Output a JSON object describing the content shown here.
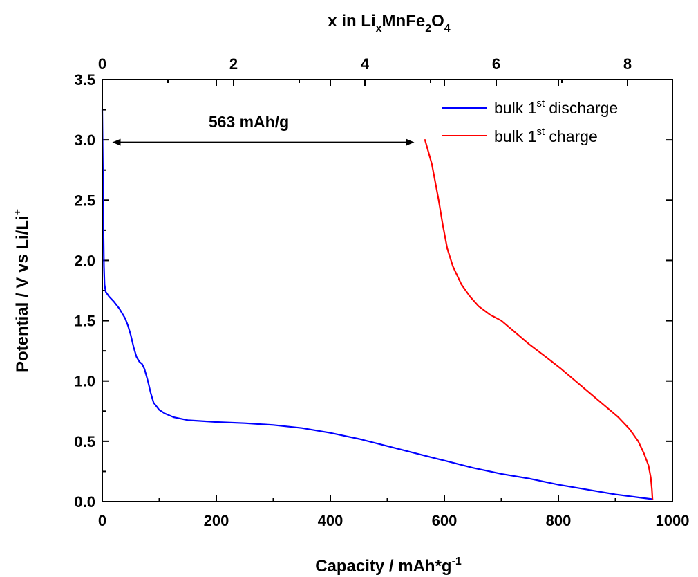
{
  "chart_data": {
    "type": "line",
    "xlabel": "Capacity / mAh*g",
    "xlabel_sup": "-1",
    "ylabel": "Potential / V vs Li/Li",
    "ylabel_sup": "+",
    "top_axis_label": {
      "parts": [
        {
          "text": "x in Li",
          "style": "normal"
        },
        {
          "text": "x",
          "style": "sub"
        },
        {
          "text": "MnFe",
          "style": "normal"
        },
        {
          "text": "2",
          "style": "sub"
        },
        {
          "text": "O",
          "style": "normal"
        },
        {
          "text": "4",
          "style": "sub"
        }
      ]
    },
    "xlim": [
      0,
      1000
    ],
    "ylim": [
      0,
      3.5
    ],
    "x_ticks": [
      0,
      200,
      400,
      600,
      800,
      1000
    ],
    "x_tick_labels": [
      "0",
      "200",
      "400",
      "600",
      "800",
      "1000"
    ],
    "y_ticks": [
      0,
      0.5,
      1.0,
      1.5,
      2.0,
      2.5,
      3.0,
      3.5
    ],
    "y_tick_labels": [
      "0.0",
      "0.5",
      "1.0",
      "1.5",
      "2.0",
      "2.5",
      "3.0",
      "3.5"
    ],
    "top_ticks_capacity": [
      0,
      230.3,
      460.6,
      690.9,
      921.2
    ],
    "top_tick_labels": [
      "0",
      "2",
      "4",
      "6",
      "8"
    ],
    "grid": false,
    "legend_position": "top-right",
    "series": [
      {
        "name_main": "bulk 1",
        "name_sup": "st",
        "name_tail": " discharge",
        "color": "#0000ff",
        "points": [
          [
            0,
            3.25
          ],
          [
            1,
            2.8
          ],
          [
            2,
            2.3
          ],
          [
            3,
            1.95
          ],
          [
            4,
            1.8
          ],
          [
            6,
            1.74
          ],
          [
            12,
            1.7
          ],
          [
            20,
            1.66
          ],
          [
            30,
            1.6
          ],
          [
            40,
            1.52
          ],
          [
            45,
            1.46
          ],
          [
            50,
            1.38
          ],
          [
            55,
            1.28
          ],
          [
            60,
            1.2
          ],
          [
            65,
            1.16
          ],
          [
            70,
            1.14
          ],
          [
            74,
            1.1
          ],
          [
            80,
            1.0
          ],
          [
            85,
            0.9
          ],
          [
            90,
            0.82
          ],
          [
            100,
            0.76
          ],
          [
            110,
            0.73
          ],
          [
            125,
            0.7
          ],
          [
            150,
            0.675
          ],
          [
            200,
            0.66
          ],
          [
            250,
            0.65
          ],
          [
            300,
            0.635
          ],
          [
            350,
            0.61
          ],
          [
            400,
            0.57
          ],
          [
            450,
            0.52
          ],
          [
            500,
            0.46
          ],
          [
            550,
            0.4
          ],
          [
            600,
            0.34
          ],
          [
            650,
            0.28
          ],
          [
            700,
            0.23
          ],
          [
            750,
            0.19
          ],
          [
            800,
            0.14
          ],
          [
            850,
            0.1
          ],
          [
            900,
            0.06
          ],
          [
            940,
            0.035
          ],
          [
            965,
            0.02
          ]
        ]
      },
      {
        "name_main": "bulk 1",
        "name_sup": "st",
        "name_tail": " charge",
        "color": "#ff0000",
        "points": [
          [
            965,
            0.02
          ],
          [
            964,
            0.1
          ],
          [
            962,
            0.2
          ],
          [
            958,
            0.3
          ],
          [
            950,
            0.4
          ],
          [
            940,
            0.5
          ],
          [
            925,
            0.6
          ],
          [
            905,
            0.7
          ],
          [
            880,
            0.8
          ],
          [
            855,
            0.9
          ],
          [
            830,
            1.0
          ],
          [
            805,
            1.1
          ],
          [
            778,
            1.2
          ],
          [
            750,
            1.3
          ],
          [
            725,
            1.4
          ],
          [
            700,
            1.5
          ],
          [
            680,
            1.55
          ],
          [
            660,
            1.62
          ],
          [
            645,
            1.7
          ],
          [
            630,
            1.8
          ],
          [
            615,
            1.95
          ],
          [
            605,
            2.1
          ],
          [
            597,
            2.3
          ],
          [
            590,
            2.5
          ],
          [
            584,
            2.65
          ],
          [
            578,
            2.8
          ],
          [
            572,
            2.9
          ],
          [
            566,
            3.0
          ]
        ]
      }
    ],
    "annotation": {
      "text": "563 mAh/g",
      "from_x": 20,
      "to_x": 545,
      "y": 2.98
    }
  }
}
